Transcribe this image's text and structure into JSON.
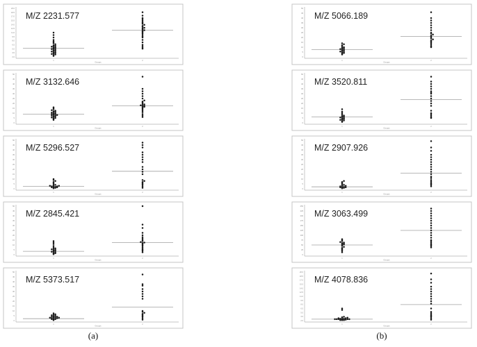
{
  "captions": [
    "(a)",
    "(b)"
  ],
  "axis_text": {
    "x_title": "Groups",
    "group1": "1",
    "group2": "2"
  },
  "chart_data": [
    {
      "type": "scatter",
      "column": "a",
      "title": "M/Z 2231.577",
      "ylim": [
        0,
        1
      ],
      "median": [
        0.18,
        0.55
      ],
      "y_ticks": [
        "20.0",
        "18.5",
        "17.0",
        "15.5",
        "14.0",
        "12.5",
        "11.0",
        "9.5",
        "8.0",
        "6.5",
        "5.0",
        "3.5",
        "2.0"
      ],
      "groups": [
        {
          "category": "1",
          "values": [
            0.02,
            0.04,
            0.05,
            0.06,
            0.07,
            0.08,
            0.09,
            0.1,
            0.11,
            0.12,
            0.13,
            0.14,
            0.15,
            0.16,
            0.17,
            0.18,
            0.19,
            0.2,
            0.21,
            0.22,
            0.23,
            0.24,
            0.26,
            0.28,
            0.3,
            0.32,
            0.35,
            0.4,
            0.45,
            0.5
          ]
        },
        {
          "category": "2",
          "values": [
            0.17,
            0.19,
            0.22,
            0.25,
            0.3,
            0.35,
            0.4,
            0.42,
            0.45,
            0.48,
            0.5,
            0.52,
            0.54,
            0.55,
            0.57,
            0.59,
            0.6,
            0.62,
            0.64,
            0.66,
            0.68,
            0.7,
            0.72,
            0.75,
            0.78,
            0.8,
            0.85,
            0.92
          ]
        }
      ]
    },
    {
      "type": "scatter",
      "column": "a",
      "title": "M/Z 3132.646",
      "ylim": [
        0,
        1
      ],
      "median": [
        0.18,
        0.35
      ],
      "y_ticks": [
        "50",
        "45",
        "40",
        "35",
        "30",
        "25",
        "20",
        "15",
        "10",
        "5",
        "0"
      ],
      "groups": [
        {
          "category": "1",
          "values": [
            0.06,
            0.08,
            0.09,
            0.1,
            0.11,
            0.12,
            0.13,
            0.14,
            0.15,
            0.15,
            0.16,
            0.17,
            0.18,
            0.18,
            0.19,
            0.2,
            0.21,
            0.22,
            0.23,
            0.24,
            0.25,
            0.26,
            0.28,
            0.3,
            0.32
          ]
        },
        {
          "category": "2",
          "values": [
            0.12,
            0.15,
            0.18,
            0.22,
            0.25,
            0.28,
            0.3,
            0.32,
            0.33,
            0.34,
            0.35,
            0.36,
            0.37,
            0.38,
            0.4,
            0.42,
            0.44,
            0.46,
            0.5,
            0.55,
            0.6,
            0.65,
            0.7,
            0.95
          ]
        }
      ]
    },
    {
      "type": "scatter",
      "column": "a",
      "title": "M/Z 5296.527",
      "ylim": [
        0,
        1
      ],
      "median": [
        0.05,
        0.36
      ],
      "y_ticks": [
        "50",
        "45",
        "40",
        "35",
        "30",
        "25",
        "20",
        "15",
        "10",
        "5",
        "0"
      ],
      "groups": [
        {
          "category": "1",
          "values": [
            0.01,
            0.02,
            0.02,
            0.03,
            0.03,
            0.04,
            0.04,
            0.05,
            0.05,
            0.06,
            0.06,
            0.07,
            0.08,
            0.1,
            0.12,
            0.14,
            0.16,
            0.18,
            0.2
          ]
        },
        {
          "category": "2",
          "values": [
            0.02,
            0.05,
            0.08,
            0.1,
            0.12,
            0.14,
            0.16,
            0.18,
            0.3,
            0.35,
            0.4,
            0.45,
            0.55,
            0.6,
            0.65,
            0.7,
            0.75,
            0.85,
            0.9,
            0.95
          ]
        }
      ]
    },
    {
      "type": "scatter",
      "column": "a",
      "title": "M/Z 2845.421",
      "ylim": [
        0,
        1
      ],
      "median": [
        0.07,
        0.25
      ],
      "y_ticks": [
        "50",
        "45",
        "40",
        "35",
        "30",
        "25",
        "20",
        "15",
        "10",
        "5",
        "0"
      ],
      "groups": [
        {
          "category": "1",
          "values": [
            0.01,
            0.02,
            0.03,
            0.04,
            0.05,
            0.06,
            0.07,
            0.08,
            0.09,
            0.1,
            0.11,
            0.12,
            0.13,
            0.15,
            0.18,
            0.22,
            0.25,
            0.28
          ]
        },
        {
          "category": "2",
          "values": [
            0.05,
            0.08,
            0.1,
            0.12,
            0.15,
            0.18,
            0.2,
            0.22,
            0.24,
            0.25,
            0.26,
            0.28,
            0.3,
            0.33,
            0.36,
            0.4,
            0.45,
            0.55,
            0.62,
            1.0
          ]
        }
      ]
    },
    {
      "type": "scatter",
      "column": "a",
      "title": "M/Z 5373.517",
      "ylim": [
        0,
        1
      ],
      "median": [
        0.04,
        0.28
      ],
      "y_ticks": [
        "50",
        "45",
        "40",
        "35",
        "30",
        "25",
        "20",
        "15",
        "10",
        "5",
        "0"
      ],
      "groups": [
        {
          "category": "1",
          "values": [
            0.01,
            0.02,
            0.03,
            0.03,
            0.04,
            0.04,
            0.05,
            0.05,
            0.06,
            0.06,
            0.07,
            0.07,
            0.08,
            0.08,
            0.09,
            0.1,
            0.11,
            0.12,
            0.13,
            0.15
          ]
        },
        {
          "category": "2",
          "values": [
            0.02,
            0.05,
            0.08,
            0.1,
            0.12,
            0.14,
            0.16,
            0.18,
            0.2,
            0.45,
            0.5,
            0.55,
            0.6,
            0.65,
            0.72,
            0.75,
            0.95
          ]
        }
      ]
    },
    {
      "type": "scatter",
      "column": "b",
      "title": "M/Z 5066.189",
      "ylim": [
        0,
        1
      ],
      "median": [
        0.15,
        0.42
      ],
      "y_ticks": [
        "50",
        "45",
        "40",
        "35",
        "30",
        "25",
        "20",
        "15",
        "10",
        "5",
        "0"
      ],
      "groups": [
        {
          "category": "1",
          "values": [
            0.05,
            0.07,
            0.08,
            0.09,
            0.1,
            0.11,
            0.12,
            0.13,
            0.14,
            0.15,
            0.16,
            0.17,
            0.18,
            0.19,
            0.2,
            0.22,
            0.24,
            0.26,
            0.28
          ]
        },
        {
          "category": "2",
          "values": [
            0.2,
            0.22,
            0.25,
            0.28,
            0.3,
            0.32,
            0.34,
            0.36,
            0.38,
            0.4,
            0.42,
            0.44,
            0.46,
            0.48,
            0.5,
            0.55,
            0.6,
            0.65,
            0.7,
            0.75,
            0.8,
            0.92
          ]
        }
      ]
    },
    {
      "type": "scatter",
      "column": "b",
      "title": "M/Z 3520.811",
      "ylim": [
        0,
        1
      ],
      "median": [
        0.12,
        0.48
      ],
      "y_ticks": [
        "50",
        "45",
        "40",
        "35",
        "30",
        "25",
        "20",
        "15",
        "10",
        "5",
        "0"
      ],
      "groups": [
        {
          "category": "1",
          "values": [
            0.02,
            0.04,
            0.05,
            0.06,
            0.07,
            0.08,
            0.09,
            0.1,
            0.11,
            0.12,
            0.13,
            0.14,
            0.15,
            0.17,
            0.2,
            0.23,
            0.28
          ]
        },
        {
          "category": "2",
          "values": [
            0.1,
            0.12,
            0.15,
            0.18,
            0.2,
            0.25,
            0.35,
            0.4,
            0.45,
            0.5,
            0.55,
            0.6,
            0.62,
            0.65,
            0.7,
            0.75,
            0.8,
            0.85,
            0.95
          ]
        }
      ]
    },
    {
      "type": "scatter",
      "column": "b",
      "title": "M/Z 2907.926",
      "ylim": [
        0,
        1
      ],
      "median": [
        0.04,
        0.32
      ],
      "y_ticks": [
        "50",
        "45",
        "40",
        "35",
        "30",
        "25",
        "20",
        "15",
        "10",
        "5",
        "0"
      ],
      "groups": [
        {
          "category": "1",
          "values": [
            0.01,
            0.02,
            0.02,
            0.03,
            0.03,
            0.04,
            0.04,
            0.05,
            0.06,
            0.07,
            0.08,
            0.1,
            0.12,
            0.14,
            0.16
          ]
        },
        {
          "category": "2",
          "values": [
            0.05,
            0.08,
            0.1,
            0.12,
            0.15,
            0.18,
            0.22,
            0.25,
            0.3,
            0.35,
            0.4,
            0.45,
            0.5,
            0.55,
            0.6,
            0.65,
            0.7,
            0.78,
            0.85,
            0.98
          ]
        }
      ]
    },
    {
      "type": "scatter",
      "column": "b",
      "title": "M/Z 3063.499",
      "ylim": [
        0,
        1
      ],
      "median": [
        0.2,
        0.5
      ],
      "y_ticks": [
        "250",
        "225",
        "200",
        "175",
        "150",
        "125",
        "100",
        "75",
        "50",
        "25",
        "0"
      ],
      "groups": [
        {
          "category": "1",
          "values": [
            0.05,
            0.08,
            0.1,
            0.12,
            0.14,
            0.16,
            0.18,
            0.2,
            0.21,
            0.22,
            0.23,
            0.24,
            0.25,
            0.26,
            0.28,
            0.3,
            0.32
          ]
        },
        {
          "category": "2",
          "values": [
            0.15,
            0.18,
            0.2,
            0.22,
            0.25,
            0.28,
            0.3,
            0.35,
            0.4,
            0.45,
            0.5,
            0.55,
            0.6,
            0.65,
            0.7,
            0.75,
            0.8,
            0.85,
            0.9,
            0.95
          ]
        }
      ]
    },
    {
      "type": "scatter",
      "column": "b",
      "title": "M/Z 4078.836",
      "ylim": [
        0,
        1
      ],
      "median": [
        0.03,
        0.33
      ],
      "y_ticks": [
        "20.0",
        "18.5",
        "17.0",
        "15.5",
        "14.0",
        "12.5",
        "11.0",
        "9.5",
        "8.0",
        "6.5",
        "5.0",
        "3.5",
        "2.0"
      ],
      "groups": [
        {
          "category": "1",
          "values": [
            0.01,
            0.01,
            0.01,
            0.02,
            0.02,
            0.02,
            0.02,
            0.03,
            0.03,
            0.03,
            0.03,
            0.03,
            0.04,
            0.04,
            0.04,
            0.05,
            0.05,
            0.06,
            0.07,
            0.08,
            0.22,
            0.25
          ]
        },
        {
          "category": "2",
          "values": [
            0.02,
            0.05,
            0.08,
            0.1,
            0.12,
            0.15,
            0.18,
            0.25,
            0.35,
            0.4,
            0.45,
            0.5,
            0.55,
            0.6,
            0.65,
            0.7,
            0.78,
            0.85,
            0.97
          ]
        }
      ]
    }
  ]
}
